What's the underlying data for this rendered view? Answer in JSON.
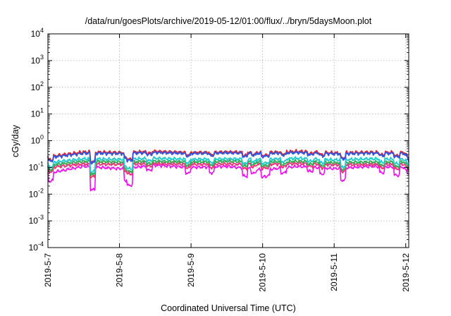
{
  "chart_data": {
    "type": "line",
    "title": "/data/run/goesPlots/archive/2019-05-12/01:00/flux/../bryn/5daysMoon.plot",
    "xlabel": "Coordinated Universal Time (UTC)",
    "ylabel": "cGy/day",
    "yscale": "log",
    "ylim": [
      0.0001,
      10000
    ],
    "y_ticks": [
      {
        "value": 0.0001,
        "base": "10",
        "exp": "-4"
      },
      {
        "value": 0.001,
        "base": "10",
        "exp": "-3"
      },
      {
        "value": 0.01,
        "base": "10",
        "exp": "-2"
      },
      {
        "value": 0.1,
        "base": "10",
        "exp": "-1"
      },
      {
        "value": 1,
        "base": "10",
        "exp": "0"
      },
      {
        "value": 10,
        "base": "10",
        "exp": "1"
      },
      {
        "value": 100,
        "base": "10",
        "exp": "2"
      },
      {
        "value": 1000,
        "base": "10",
        "exp": "3"
      },
      {
        "value": 10000,
        "base": "10",
        "exp": "4"
      }
    ],
    "xlim": [
      "2019-05-07",
      "2019-05-12 01:00"
    ],
    "x_ticks": [
      {
        "value": "2019-05-07",
        "label": "2019-5-7"
      },
      {
        "value": "2019-05-08",
        "label": "2019-5-8"
      },
      {
        "value": "2019-05-09",
        "label": "2019-5-9"
      },
      {
        "value": "2019-05-10",
        "label": "2019-5-10"
      },
      {
        "value": "2019-05-11",
        "label": "2019-5-11"
      },
      {
        "value": "2019-05-12",
        "label": "2019-5-12"
      }
    ],
    "grid": true,
    "legend": "none",
    "series": [
      {
        "color": "#e8202a",
        "base": 0.36,
        "x": [
          "2019-05-07 00:00",
          "2019-05-07 12:00",
          "2019-05-08 00:00",
          "2019-05-08 12:00",
          "2019-05-09 00:00",
          "2019-05-09 12:00",
          "2019-05-10 00:00",
          "2019-05-10 12:00",
          "2019-05-11 00:00",
          "2019-05-11 12:00",
          "2019-05-12 00:00",
          "2019-05-12 01:00"
        ],
        "y": [
          0.25,
          0.38,
          0.36,
          0.4,
          0.36,
          0.38,
          0.36,
          0.4,
          0.35,
          0.37,
          0.36,
          0.22
        ]
      },
      {
        "color": "#3355dd",
        "base": 0.33,
        "x": [
          "2019-05-07 00:00",
          "2019-05-07 12:00",
          "2019-05-08 00:00",
          "2019-05-08 12:00",
          "2019-05-09 00:00",
          "2019-05-09 12:00",
          "2019-05-10 00:00",
          "2019-05-10 12:00",
          "2019-05-11 00:00",
          "2019-05-11 12:00",
          "2019-05-12 00:00",
          "2019-05-12 01:00"
        ],
        "y": [
          0.23,
          0.34,
          0.33,
          0.36,
          0.33,
          0.35,
          0.33,
          0.36,
          0.32,
          0.34,
          0.33,
          0.2
        ]
      },
      {
        "color": "#22cccc",
        "base": 0.2,
        "x": [
          "2019-05-07 00:00",
          "2019-05-07 12:00",
          "2019-05-08 00:00",
          "2019-05-08 12:00",
          "2019-05-09 00:00",
          "2019-05-09 12:00",
          "2019-05-10 00:00",
          "2019-05-10 12:00",
          "2019-05-11 00:00",
          "2019-05-11 12:00",
          "2019-05-12 00:00",
          "2019-05-12 01:00"
        ],
        "y": [
          0.15,
          0.21,
          0.2,
          0.22,
          0.2,
          0.21,
          0.2,
          0.22,
          0.19,
          0.21,
          0.2,
          0.14
        ]
      },
      {
        "color": "#33aa55",
        "base": 0.16,
        "x": [
          "2019-05-07 00:00",
          "2019-05-07 12:00",
          "2019-05-08 00:00",
          "2019-05-08 12:00",
          "2019-05-09 00:00",
          "2019-05-09 12:00",
          "2019-05-10 00:00",
          "2019-05-10 12:00",
          "2019-05-11 00:00",
          "2019-05-11 12:00",
          "2019-05-12 00:00",
          "2019-05-12 01:00"
        ],
        "y": [
          0.12,
          0.17,
          0.16,
          0.17,
          0.16,
          0.17,
          0.16,
          0.17,
          0.15,
          0.16,
          0.16,
          0.11
        ]
      },
      {
        "color": "#ee3377",
        "base": 0.13,
        "x": [
          "2019-05-07 00:00",
          "2019-05-07 12:00",
          "2019-05-08 00:00",
          "2019-05-08 12:00",
          "2019-05-09 00:00",
          "2019-05-09 12:00",
          "2019-05-10 00:00",
          "2019-05-10 12:00",
          "2019-05-11 00:00",
          "2019-05-11 12:00",
          "2019-05-12 00:00",
          "2019-05-12 01:00"
        ],
        "y": [
          0.1,
          0.135,
          0.13,
          0.14,
          0.13,
          0.135,
          0.13,
          0.14,
          0.125,
          0.13,
          0.13,
          0.09
        ]
      },
      {
        "color": "#ee11ee",
        "base": 0.11,
        "x": [
          "2019-05-07 00:00",
          "2019-05-07 12:00",
          "2019-05-08 00:00",
          "2019-05-08 12:00",
          "2019-05-09 00:00",
          "2019-05-09 12:00",
          "2019-05-10 00:00",
          "2019-05-10 12:00",
          "2019-05-11 00:00",
          "2019-05-11 12:00",
          "2019-05-12 00:00",
          "2019-05-12 01:00"
        ],
        "y": [
          0.06,
          0.11,
          0.09,
          0.12,
          0.1,
          0.11,
          0.08,
          0.11,
          0.09,
          0.11,
          0.1,
          0.07
        ]
      }
    ],
    "dips": [
      {
        "x": "2019-05-07 01:00",
        "factor": 0.5
      },
      {
        "x": "2019-05-07 15:00",
        "factor": 0.14
      },
      {
        "x": "2019-05-08 02:30",
        "factor": 0.35
      },
      {
        "x": "2019-05-08 03:30",
        "factor": 0.22
      },
      {
        "x": "2019-05-08 10:00",
        "factor": 0.7
      },
      {
        "x": "2019-05-08 23:00",
        "factor": 0.6
      },
      {
        "x": "2019-05-09 07:00",
        "factor": 0.6
      },
      {
        "x": "2019-05-09 18:00",
        "factor": 0.5
      },
      {
        "x": "2019-05-09 21:00",
        "factor": 0.7
      },
      {
        "x": "2019-05-10 00:30",
        "factor": 0.55
      },
      {
        "x": "2019-05-10 01:30",
        "factor": 0.6
      },
      {
        "x": "2019-05-10 07:00",
        "factor": 0.65
      },
      {
        "x": "2019-05-10 16:00",
        "factor": 0.7
      },
      {
        "x": "2019-05-10 20:00",
        "factor": 0.6
      },
      {
        "x": "2019-05-11 03:00",
        "factor": 0.35
      },
      {
        "x": "2019-05-11 16:00",
        "factor": 0.6
      },
      {
        "x": "2019-05-11 21:00",
        "factor": 0.5
      },
      {
        "x": "2019-05-12 00:30",
        "factor": 0.8
      }
    ]
  }
}
